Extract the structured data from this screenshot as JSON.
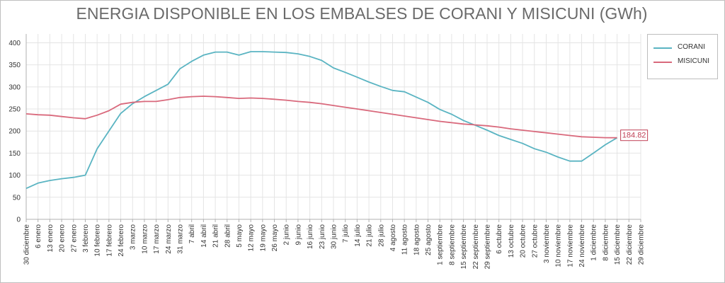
{
  "chart_data": {
    "type": "line",
    "title": "ENERGIA DISPONIBLE EN LOS EMBALSES DE CORANI Y MISICUNI (GWh)",
    "xlabel": "",
    "ylabel": "",
    "ylim": [
      0,
      420
    ],
    "yticks": [
      0,
      50,
      100,
      150,
      200,
      250,
      300,
      350,
      400
    ],
    "grid": true,
    "legend_position": "right",
    "categories": [
      "30 diciembre",
      "6 enero",
      "13 enero",
      "20 enero",
      "27 enero",
      "3 febrero",
      "10 febrero",
      "17 febrero",
      "24 febrero",
      "3 marzo",
      "10 marzo",
      "17 marzo",
      "24 marzo",
      "31 marzo",
      "7 abril",
      "14 abril",
      "21 abril",
      "28 abril",
      "5 mayo",
      "12 mayo",
      "19 mayo",
      "26 mayo",
      "2 junio",
      "9 junio",
      "16 junio",
      "23 junio",
      "30 junio",
      "7 julio",
      "14 julio",
      "21 julio",
      "28 julio",
      "4 agosto",
      "11 agosto",
      "18 agosto",
      "25 agosto",
      "1 septiembre",
      "8 septiembre",
      "15 septiembre",
      "22 septiembre",
      "29 septiembre",
      "6 octubre",
      "13 octubre",
      "20 octubre",
      "27 octubre",
      "3 noviembre",
      "10 noviembre",
      "17 noviembre",
      "24 noviembre",
      "1 diciembre",
      "8 diciembre",
      "15 diciembre",
      "22 diciembre",
      "29 diciembre"
    ],
    "series": [
      {
        "name": "CORANI",
        "color": "#5ab4c2",
        "values": [
          70,
          82,
          88,
          92,
          95,
          100,
          160,
          200,
          240,
          262,
          278,
          292,
          306,
          341,
          358,
          372,
          379,
          379,
          372,
          380,
          380,
          379,
          378,
          375,
          369,
          360,
          343,
          333,
          322,
          311,
          301,
          292,
          289,
          277,
          265,
          249,
          238,
          224,
          213,
          202,
          190,
          181,
          172,
          160,
          152,
          141,
          132,
          132,
          150,
          169,
          184.82,
          null,
          null
        ]
      },
      {
        "name": "MISICUNI",
        "color": "#d9697c",
        "values": [
          239,
          237,
          236,
          233,
          230,
          228,
          236,
          246,
          261,
          265,
          267,
          267,
          271,
          276,
          278,
          279,
          278,
          276,
          274,
          275,
          274,
          272,
          270,
          267,
          265,
          262,
          258,
          254,
          250,
          246,
          242,
          238,
          234,
          230,
          226,
          222,
          219,
          216,
          214,
          212,
          209,
          205,
          202,
          199,
          196,
          193,
          190,
          187,
          186,
          185,
          184.82,
          null,
          null
        ]
      }
    ],
    "data_labels": [
      {
        "series": "CORANI",
        "index": 50,
        "text": "184.82",
        "color": "#c04055"
      }
    ],
    "colors": {
      "grid": "#e4e4e4",
      "axis": "#b0b0b0",
      "title": "#6a6a6a"
    }
  }
}
